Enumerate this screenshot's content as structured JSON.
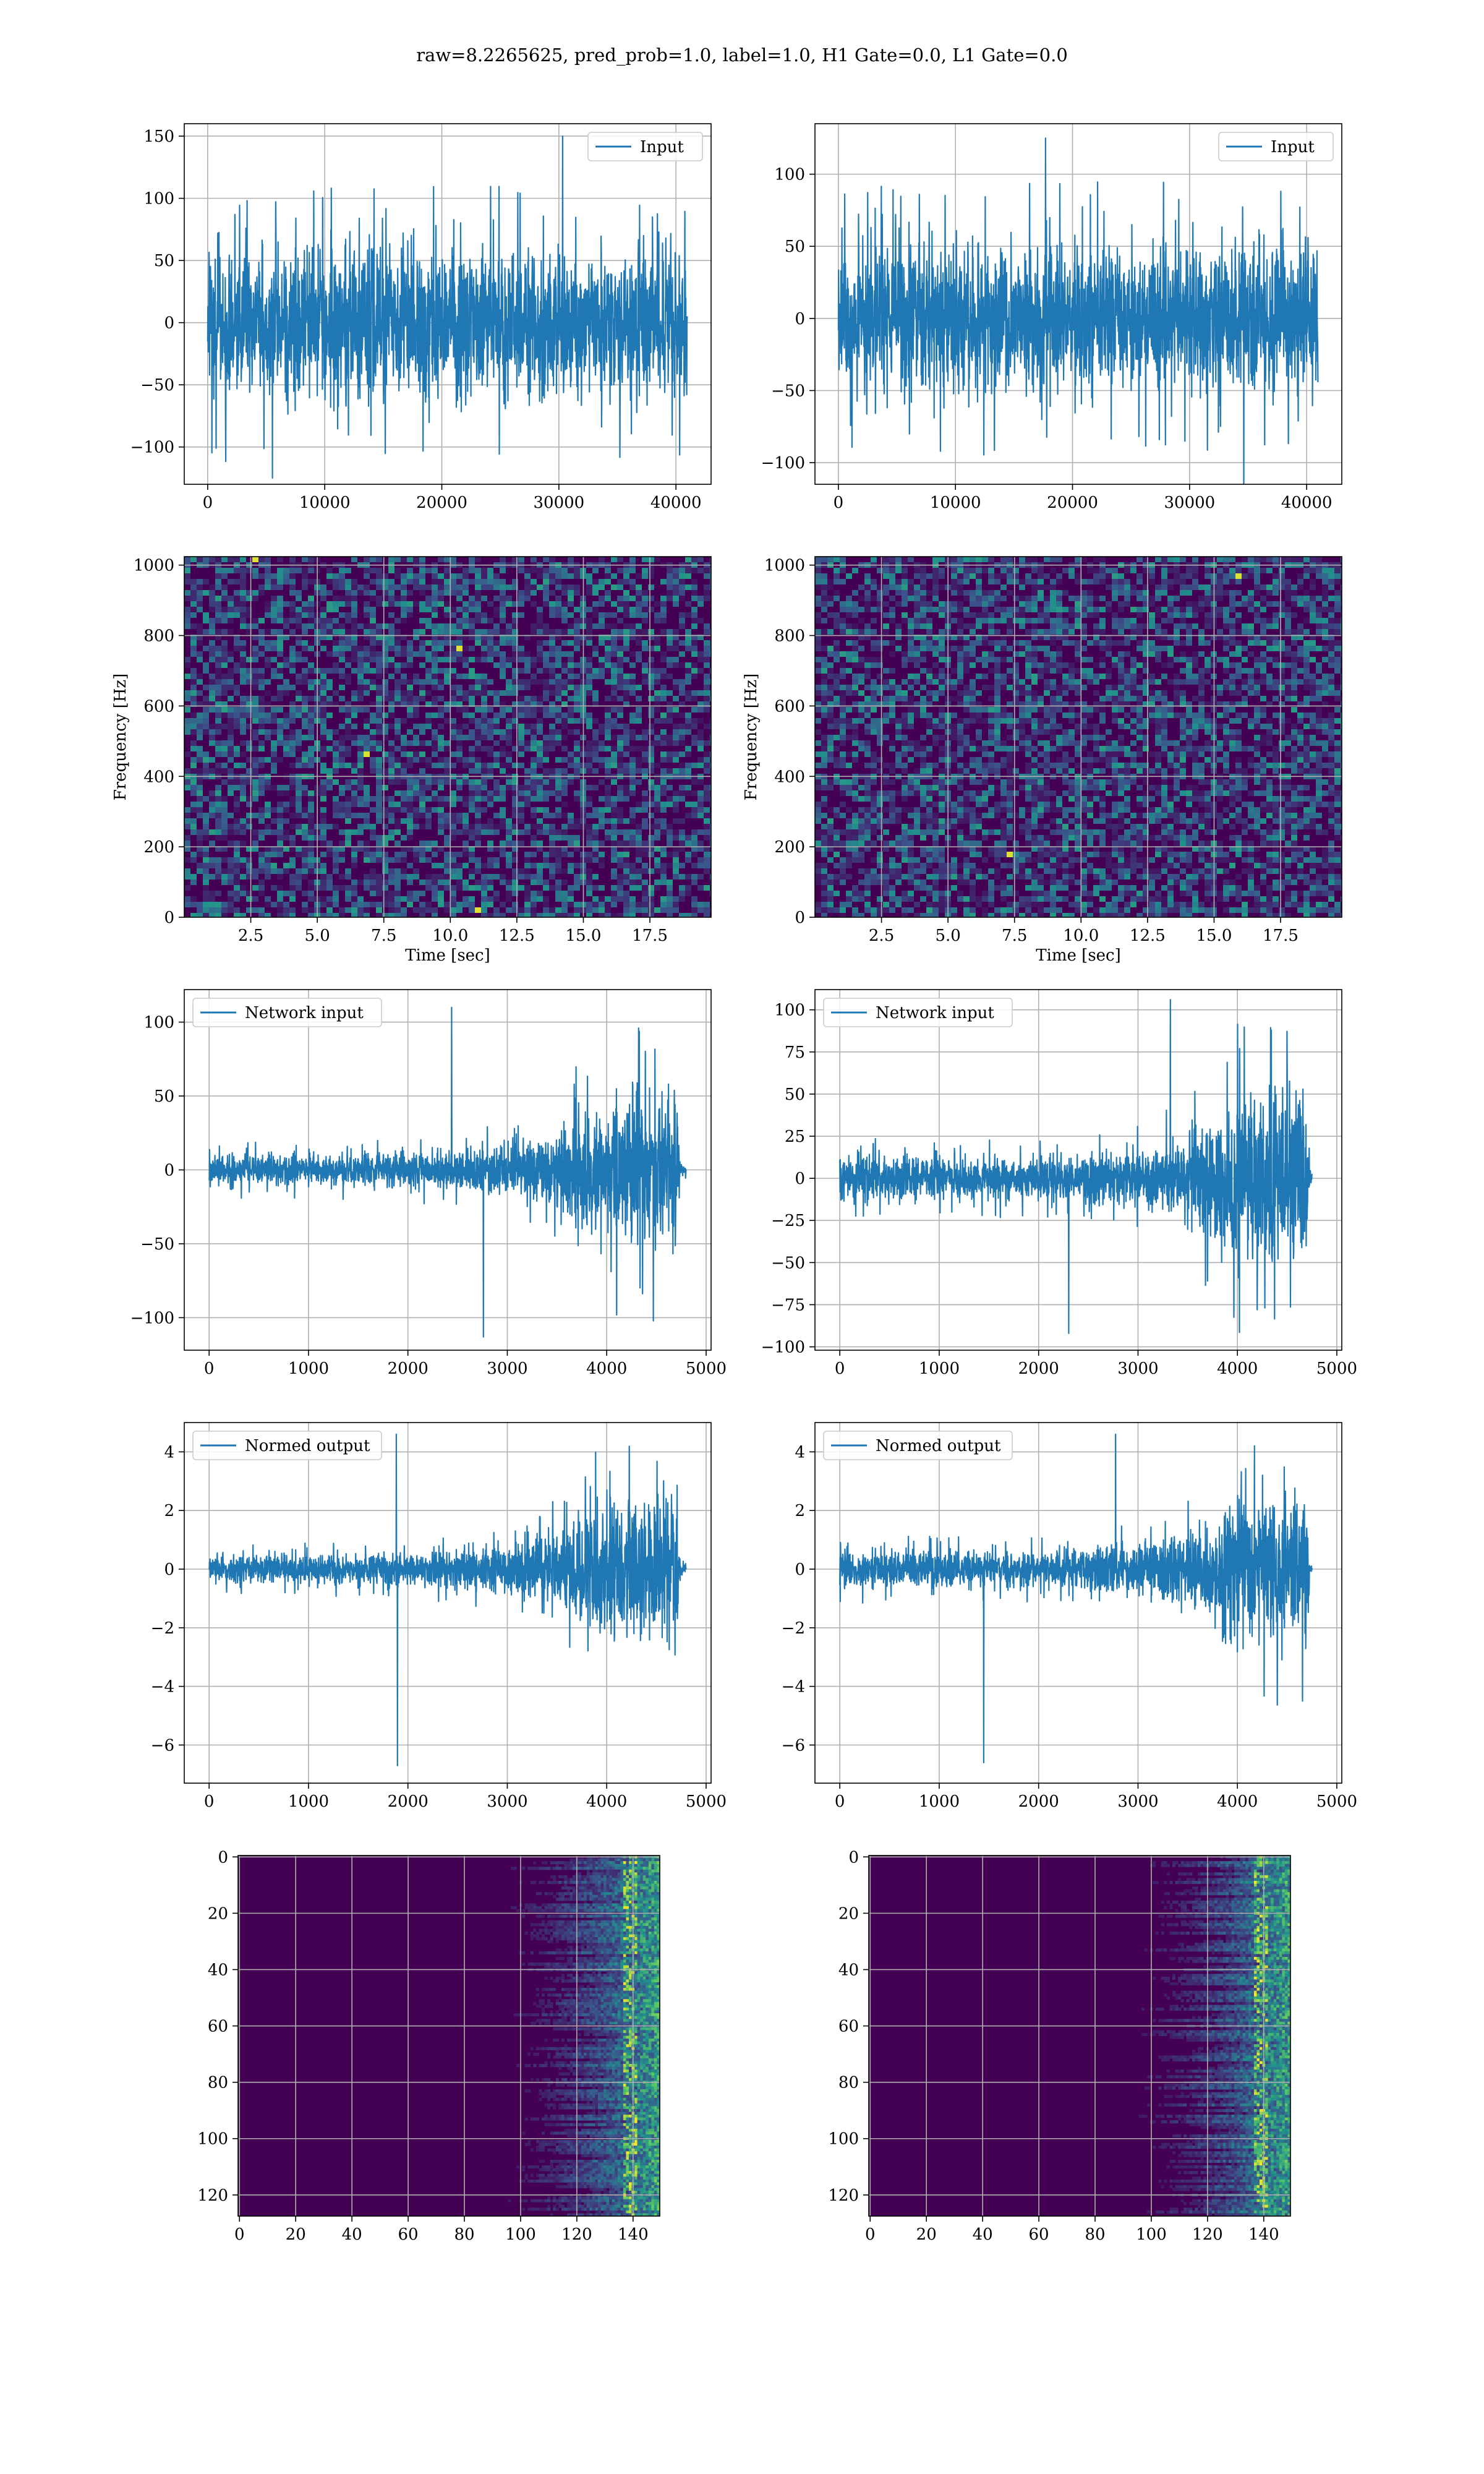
{
  "figure": {
    "title": "raw=8.2265625, pred_prob=1.0, label=1.0, H1 Gate=0.0, L1 Gate=0.0"
  },
  "colors": {
    "series": "#1f77b4",
    "grid": "#b0b0b0",
    "viridis_low": "#440154",
    "viridis_mid": "#21918c",
    "viridis_high": "#fde725"
  },
  "chart_data": [
    {
      "type": "line",
      "id": "input-h1",
      "legend": "Input",
      "legend_loc": "upper right",
      "xlabel": "",
      "ylabel": "",
      "xlim": [
        -2000,
        43000
      ],
      "ylim": [
        -130,
        160
      ],
      "xticks": [
        0,
        10000,
        20000,
        30000,
        40000
      ],
      "yticks": [
        -100,
        -50,
        0,
        50,
        100,
        150
      ],
      "signal": {
        "n": 40960,
        "envelope": [
          [
            0,
            70
          ],
          [
            40960,
            70
          ]
        ],
        "peak_max": 150,
        "peak_min": -125
      },
      "grid": true
    },
    {
      "type": "line",
      "id": "input-l1",
      "legend": "Input",
      "legend_loc": "upper right",
      "xlabel": "",
      "ylabel": "",
      "xlim": [
        -2000,
        43000
      ],
      "ylim": [
        -115,
        135
      ],
      "xticks": [
        0,
        10000,
        20000,
        30000,
        40000
      ],
      "yticks": [
        -100,
        -50,
        0,
        50,
        100
      ],
      "signal": {
        "n": 40960,
        "envelope": [
          [
            0,
            60
          ],
          [
            40960,
            60
          ]
        ],
        "peak_max": 125,
        "peak_min": -122
      },
      "grid": true
    },
    {
      "type": "heatmap",
      "id": "spectrogram-h1",
      "xlabel": "Time [sec]",
      "ylabel": "Frequency [Hz]",
      "xlim": [
        0,
        19.8
      ],
      "ylim": [
        0,
        1024
      ],
      "xticks": [
        2.5,
        5.0,
        7.5,
        10.0,
        12.5,
        15.0,
        17.5
      ],
      "yticks": [
        0,
        200,
        400,
        600,
        800,
        1000
      ],
      "colormap": "viridis",
      "grid": true
    },
    {
      "type": "heatmap",
      "id": "spectrogram-l1",
      "xlabel": "Time [sec]",
      "ylabel": "Frequency [Hz]",
      "xlim": [
        0,
        19.8
      ],
      "ylim": [
        0,
        1024
      ],
      "xticks": [
        2.5,
        5.0,
        7.5,
        10.0,
        12.5,
        15.0,
        17.5
      ],
      "yticks": [
        0,
        200,
        400,
        600,
        800,
        1000
      ],
      "colormap": "viridis",
      "grid": true
    },
    {
      "type": "line",
      "id": "network-input-h1",
      "legend": "Network input",
      "legend_loc": "upper left",
      "xlabel": "",
      "ylabel": "",
      "xlim": [
        -250,
        5050
      ],
      "ylim": [
        -122,
        122
      ],
      "xticks": [
        0,
        1000,
        2000,
        3000,
        4000,
        5000
      ],
      "yticks": [
        -100,
        -50,
        0,
        50,
        100
      ],
      "signal": {
        "n": 4800,
        "envelope": [
          [
            0,
            12
          ],
          [
            2000,
            13
          ],
          [
            3000,
            20
          ],
          [
            3500,
            30
          ],
          [
            4000,
            60
          ],
          [
            4700,
            70
          ],
          [
            4740,
            4
          ],
          [
            4800,
            4
          ]
        ],
        "peak_max": 110,
        "peak_min": -113
      },
      "grid": true
    },
    {
      "type": "line",
      "id": "network-input-l1",
      "legend": "Network input",
      "legend_loc": "upper left",
      "xlabel": "",
      "ylabel": "",
      "xlim": [
        -250,
        5050
      ],
      "ylim": [
        -102,
        112
      ],
      "xticks": [
        0,
        1000,
        2000,
        3000,
        4000,
        5000
      ],
      "yticks": [
        -100,
        -75,
        -50,
        -25,
        0,
        25,
        50,
        75,
        100
      ],
      "signal": {
        "n": 4750,
        "envelope": [
          [
            0,
            15
          ],
          [
            2000,
            15
          ],
          [
            3000,
            20
          ],
          [
            3500,
            30
          ],
          [
            4000,
            60
          ],
          [
            4700,
            70
          ],
          [
            4730,
            3
          ],
          [
            4800,
            3
          ]
        ],
        "peak_max": 106,
        "peak_min": -92
      },
      "grid": true
    },
    {
      "type": "line",
      "id": "normed-output-h1",
      "legend": "Normed output",
      "legend_loc": "upper left",
      "xlabel": "",
      "ylabel": "",
      "xlim": [
        -250,
        5050
      ],
      "ylim": [
        -7.3,
        5.0
      ],
      "xticks": [
        0,
        1000,
        2000,
        3000,
        4000,
        5000
      ],
      "yticks": [
        -6,
        -4,
        -2,
        0,
        2,
        4
      ],
      "signal": {
        "n": 4800,
        "envelope": [
          [
            0,
            0.55
          ],
          [
            2000,
            0.6
          ],
          [
            3000,
            1.0
          ],
          [
            3500,
            1.5
          ],
          [
            4000,
            2.8
          ],
          [
            4700,
            3.2
          ],
          [
            4740,
            0.25
          ],
          [
            4800,
            0.25
          ]
        ],
        "peak_max": 4.6,
        "peak_min": -6.7
      },
      "grid": true
    },
    {
      "type": "line",
      "id": "normed-output-l1",
      "legend": "Normed output",
      "legend_loc": "upper left",
      "xlabel": "",
      "ylabel": "",
      "xlim": [
        -250,
        5050
      ],
      "ylim": [
        -7.3,
        5.0
      ],
      "xticks": [
        0,
        1000,
        2000,
        3000,
        4000,
        5000
      ],
      "yticks": [
        -6,
        -4,
        -2,
        0,
        2,
        4
      ],
      "signal": {
        "n": 4750,
        "envelope": [
          [
            0,
            0.7
          ],
          [
            2000,
            0.7
          ],
          [
            3000,
            1.0
          ],
          [
            3500,
            1.5
          ],
          [
            4000,
            2.8
          ],
          [
            4700,
            3.2
          ],
          [
            4730,
            0.15
          ],
          [
            4800,
            0.15
          ]
        ],
        "peak_max": 4.6,
        "peak_min": -6.6
      },
      "grid": true
    },
    {
      "type": "heatmap",
      "id": "feature-map-h1",
      "xlabel": "",
      "ylabel": "",
      "xlim": [
        -0.5,
        149.5
      ],
      "ylim": [
        127.5,
        -0.5
      ],
      "xticks": [
        0,
        20,
        40,
        60,
        80,
        100,
        120,
        140
      ],
      "yticks": [
        0,
        20,
        40,
        60,
        80,
        100,
        120
      ],
      "colormap": "viridis",
      "grid": true
    },
    {
      "type": "heatmap",
      "id": "feature-map-l1",
      "xlabel": "",
      "ylabel": "",
      "xlim": [
        -0.5,
        149.5
      ],
      "ylim": [
        127.5,
        -0.5
      ],
      "xticks": [
        0,
        20,
        40,
        60,
        80,
        100,
        120,
        140
      ],
      "yticks": [
        0,
        20,
        40,
        60,
        80,
        100,
        120
      ],
      "colormap": "viridis",
      "grid": true
    }
  ]
}
